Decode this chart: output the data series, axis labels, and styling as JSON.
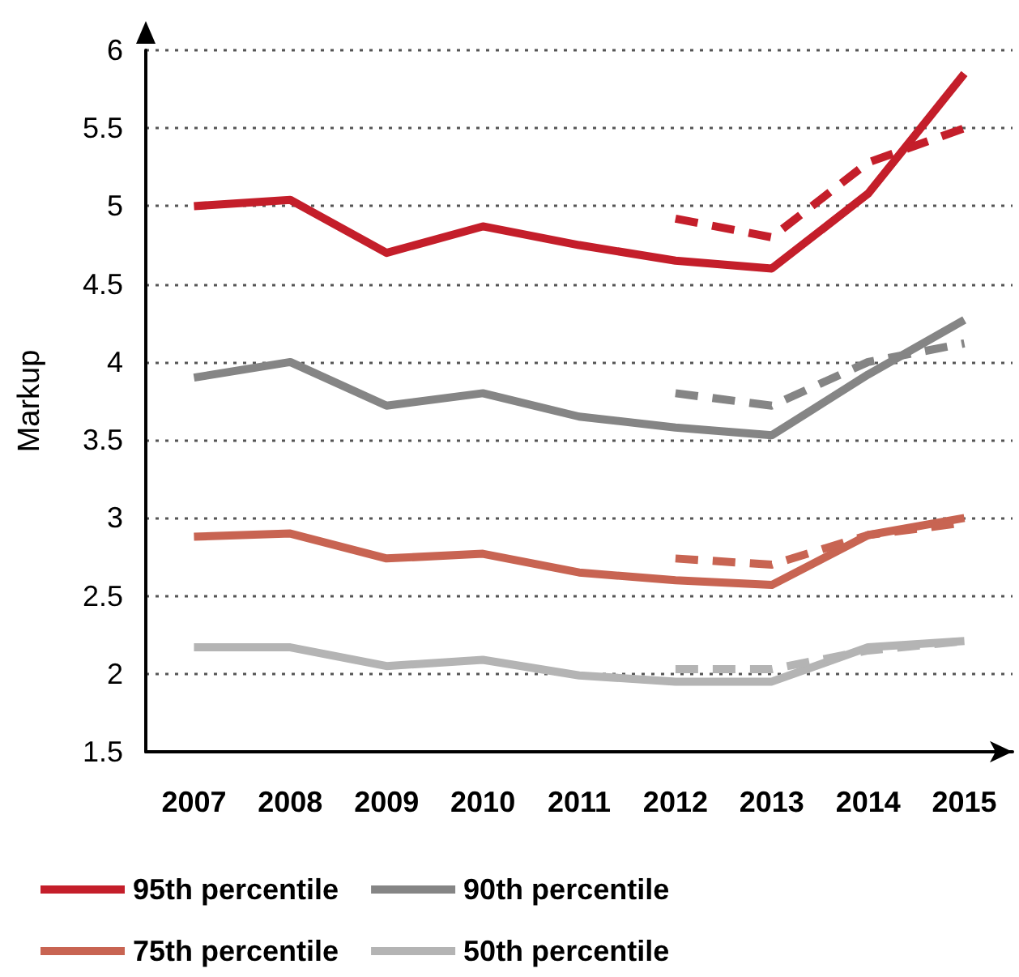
{
  "chart_data": {
    "type": "line",
    "ylabel": "Markup",
    "categories": [
      "2007",
      "2008",
      "2009",
      "2010",
      "2011",
      "2012",
      "2013",
      "2014",
      "2015"
    ],
    "ylim": [
      1.5,
      6
    ],
    "yticks": [
      1.5,
      2,
      2.5,
      3,
      3.5,
      4,
      4.5,
      5,
      5.5,
      6
    ],
    "grid": "y",
    "legend": "bottom",
    "marker": "none",
    "series": [
      {
        "name": "95th percentile",
        "color": "#c41e2a",
        "line_style": "solid",
        "values": [
          5.0,
          5.04,
          4.7,
          4.87,
          4.75,
          4.65,
          4.6,
          5.08,
          5.85
        ]
      },
      {
        "name": "90th percentile",
        "color": "#858585",
        "line_style": "solid",
        "values": [
          3.9,
          4.0,
          3.72,
          3.8,
          3.65,
          3.58,
          3.53,
          3.92,
          4.27
        ]
      },
      {
        "name": "75th percentile",
        "color": "#c86452",
        "line_style": "solid",
        "values": [
          2.88,
          2.9,
          2.74,
          2.77,
          2.65,
          2.6,
          2.57,
          2.89,
          3.0
        ]
      },
      {
        "name": "50th percentile",
        "color": "#b4b4b4",
        "line_style": "solid",
        "values": [
          2.17,
          2.17,
          2.05,
          2.09,
          1.99,
          1.95,
          1.95,
          2.17,
          2.21
        ]
      },
      {
        "color": "#c41e2a",
        "line_style": "dashed",
        "values": [
          null,
          null,
          null,
          null,
          null,
          4.92,
          4.8,
          5.28,
          5.5
        ]
      },
      {
        "color": "#858585",
        "line_style": "dashed",
        "values": [
          null,
          null,
          null,
          null,
          null,
          3.8,
          3.72,
          4.0,
          4.12
        ]
      },
      {
        "color": "#c86452",
        "line_style": "dashed",
        "values": [
          null,
          null,
          null,
          null,
          null,
          2.74,
          2.7,
          2.89,
          2.97
        ]
      },
      {
        "color": "#b4b4b4",
        "line_style": "dashed",
        "values": [
          null,
          null,
          null,
          null,
          null,
          2.03,
          2.03,
          2.15,
          2.21
        ]
      }
    ]
  }
}
